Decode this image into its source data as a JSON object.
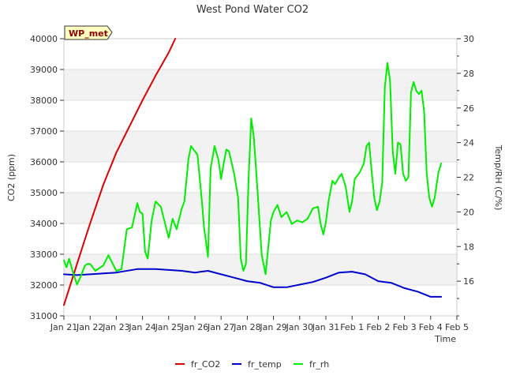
{
  "chart_data": {
    "type": "line",
    "title": "West Pond Water CO2",
    "badge": "WP_met",
    "xlabel": "Time",
    "ylabel_left": "CO2 (ppm)",
    "ylabel_right": "Temp/RH (C/%)",
    "x_ticks": [
      "Jan 21",
      "Jan 22",
      "Jan 23",
      "Jan 24",
      "Jan 25",
      "Jan 26",
      "Jan 27",
      "Jan 28",
      "Jan 29",
      "Jan 30",
      "Jan 31",
      "Feb 1",
      "Feb 2",
      "Feb 3",
      "Feb 4",
      "Feb 5"
    ],
    "xlim": [
      0,
      15
    ],
    "ylim_left": [
      31000,
      40000
    ],
    "ylim_right": [
      14,
      30
    ],
    "y_ticks_left": [
      31000,
      32000,
      33000,
      34000,
      35000,
      36000,
      37000,
      38000,
      39000,
      40000
    ],
    "y_ticks_right": [
      16,
      18,
      20,
      22,
      24,
      26,
      28,
      30
    ],
    "grid": true,
    "series": [
      {
        "name": "fr_CO2",
        "axis": "left",
        "color": "#dd0000",
        "x": [
          0.0,
          0.3,
          0.6,
          1.0,
          1.5,
          2.0,
          2.5,
          3.0,
          3.5,
          4.0,
          4.25
        ],
        "y": [
          31350,
          32150,
          32950,
          34000,
          35250,
          36300,
          37150,
          38000,
          38800,
          39550,
          40000
        ]
      },
      {
        "name": "fr_temp",
        "axis": "right",
        "color": "#0000cc",
        "x": [
          0.0,
          0.5,
          1.0,
          2.0,
          2.8,
          3.5,
          4.5,
          5.0,
          5.5,
          6.0,
          6.5,
          7.0,
          7.5,
          8.0,
          8.5,
          9.0,
          9.5,
          10.0,
          10.5,
          11.0,
          11.5,
          12.0,
          12.5,
          13.0,
          13.5,
          14.0,
          14.4
        ],
        "y": [
          16.4,
          16.35,
          16.4,
          16.5,
          16.7,
          16.7,
          16.6,
          16.5,
          16.6,
          16.4,
          16.2,
          16.0,
          15.9,
          15.65,
          15.65,
          15.8,
          15.95,
          16.2,
          16.5,
          16.55,
          16.4,
          16.0,
          15.9,
          15.6,
          15.4,
          15.1,
          15.1
        ]
      },
      {
        "name": "fr_rh",
        "axis": "right",
        "color": "#00ee00",
        "x": [
          0.0,
          0.1,
          0.2,
          0.35,
          0.5,
          0.65,
          0.8,
          0.9,
          1.0,
          1.2,
          1.5,
          1.7,
          2.0,
          2.2,
          2.4,
          2.6,
          2.8,
          2.9,
          3.0,
          3.1,
          3.2,
          3.35,
          3.5,
          3.7,
          3.85,
          4.0,
          4.15,
          4.3,
          4.5,
          4.6,
          4.75,
          4.85,
          5.0,
          5.1,
          5.25,
          5.35,
          5.5,
          5.6,
          5.75,
          5.9,
          6.0,
          6.1,
          6.2,
          6.3,
          6.5,
          6.65,
          6.75,
          6.85,
          6.95,
          7.05,
          7.15,
          7.25,
          7.4,
          7.55,
          7.7,
          7.9,
          8.0,
          8.15,
          8.3,
          8.5,
          8.7,
          8.9,
          9.1,
          9.3,
          9.5,
          9.7,
          9.8,
          9.9,
          10.0,
          10.1,
          10.25,
          10.35,
          10.5,
          10.6,
          10.75,
          10.9,
          11.0,
          11.1,
          11.3,
          11.45,
          11.55,
          11.65,
          11.75,
          11.85,
          11.95,
          12.05,
          12.15,
          12.25,
          12.35,
          12.45,
          12.55,
          12.65,
          12.75,
          12.85,
          12.95,
          13.05,
          13.15,
          13.25,
          13.35,
          13.45,
          13.55,
          13.65,
          13.75,
          13.85,
          13.95,
          14.05,
          14.15,
          14.3,
          14.4
        ],
        "y": [
          17.2,
          16.8,
          17.3,
          16.5,
          15.8,
          16.3,
          16.9,
          17.0,
          17.0,
          16.6,
          16.9,
          17.5,
          16.6,
          16.7,
          19.0,
          19.1,
          20.5,
          20.0,
          19.9,
          17.7,
          17.3,
          19.5,
          20.6,
          20.3,
          19.4,
          18.5,
          19.6,
          19.0,
          20.2,
          20.6,
          23.0,
          23.8,
          23.5,
          23.3,
          20.9,
          19.1,
          17.4,
          22.5,
          23.8,
          23.0,
          21.9,
          22.8,
          23.6,
          23.5,
          22.2,
          20.8,
          17.3,
          16.6,
          17.0,
          22.0,
          25.4,
          24.3,
          21.0,
          17.5,
          16.4,
          19.5,
          20.0,
          20.4,
          19.7,
          20.0,
          19.3,
          19.5,
          19.4,
          19.6,
          20.2,
          20.3,
          19.3,
          18.7,
          19.4,
          20.6,
          21.8,
          21.6,
          22.0,
          22.2,
          21.5,
          20.0,
          20.6,
          21.9,
          22.3,
          22.8,
          23.8,
          24.0,
          22.3,
          20.8,
          20.1,
          20.6,
          21.7,
          27.2,
          28.6,
          27.6,
          23.5,
          22.2,
          24.0,
          23.9,
          22.2,
          21.8,
          22.0,
          26.9,
          27.5,
          27.0,
          26.8,
          27.0,
          25.8,
          22.2,
          20.8,
          20.3,
          20.8,
          22.3,
          22.8
        ]
      }
    ]
  }
}
